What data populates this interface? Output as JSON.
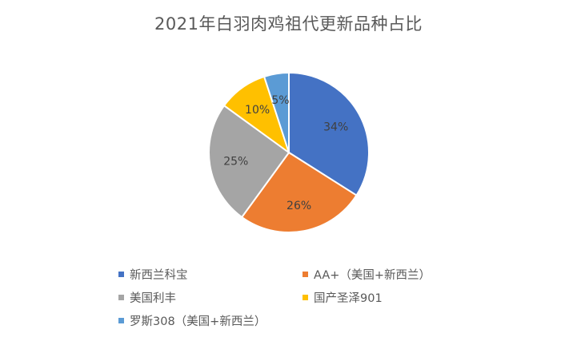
{
  "chart_data": {
    "type": "pie",
    "title": "2021年白羽肉鸡祖代更新品种占比",
    "categories": [
      "新西兰科宝",
      "AA+（美国+新西兰）",
      "美国利丰",
      "国产圣泽901",
      "罗斯308（美国+新西兰）"
    ],
    "values": [
      34,
      26,
      25,
      10,
      5
    ],
    "data_labels": [
      "34%",
      "26%",
      "25%",
      "10%",
      "5%"
    ],
    "colors": [
      "#4472C4",
      "#ED7D31",
      "#A5A5A5",
      "#FFC000",
      "#5B9BD5"
    ],
    "legend_position": "bottom"
  }
}
